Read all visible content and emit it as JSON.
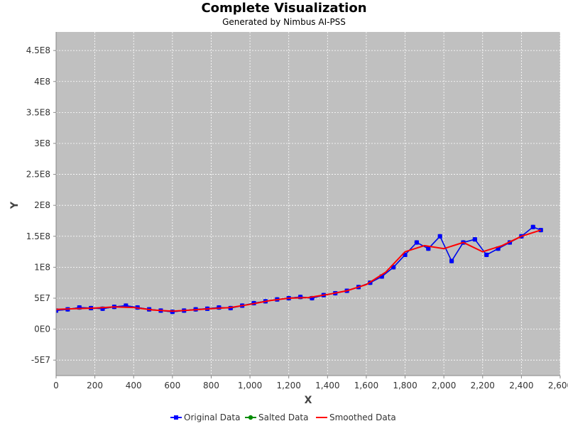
{
  "chart_data": {
    "type": "line",
    "title": "Complete Visualization",
    "subtitle": "Generated by Nimbus AI-PSS",
    "xlabel": "X",
    "ylabel": "Y",
    "xlim": [
      0,
      2600
    ],
    "ylim": [
      -75000000,
      480000000
    ],
    "x_ticks": [
      0,
      200,
      400,
      600,
      800,
      1000,
      1200,
      1400,
      1600,
      1800,
      2000,
      2200,
      2400,
      2600
    ],
    "x_tick_labels": [
      "0",
      "200",
      "400",
      "600",
      "800",
      "1,000",
      "1,200",
      "1,400",
      "1,600",
      "1,800",
      "2,000",
      "2,200",
      "2,400",
      "2,600"
    ],
    "y_ticks": [
      -50000000,
      0,
      50000000,
      100000000,
      150000000,
      200000000,
      250000000,
      300000000,
      350000000,
      400000000,
      450000000
    ],
    "y_tick_labels": [
      "-5E7",
      "0E0",
      "5E7",
      "1E8",
      "1.5E8",
      "2E8",
      "2.5E8",
      "3E8",
      "3.5E8",
      "4E8",
      "4.5E8"
    ],
    "grid": true,
    "background": "#c0c0c0",
    "legend_position": "bottom",
    "series": [
      {
        "name": "Original Data",
        "color": "#0000ff",
        "marker": "square",
        "x": [
          0,
          60,
          120,
          180,
          240,
          300,
          360,
          420,
          480,
          540,
          600,
          660,
          720,
          780,
          840,
          900,
          960,
          1020,
          1080,
          1140,
          1200,
          1260,
          1320,
          1380,
          1440,
          1500,
          1560,
          1620,
          1680,
          1740,
          1800,
          1860,
          1920,
          1980,
          2040,
          2100,
          2160,
          2220,
          2280,
          2340,
          2400,
          2460,
          2500
        ],
        "y": [
          30000000,
          32000000,
          35000000,
          34000000,
          33000000,
          36000000,
          38000000,
          35000000,
          32000000,
          30000000,
          28000000,
          30000000,
          32000000,
          33000000,
          35000000,
          34000000,
          38000000,
          42000000,
          45000000,
          48000000,
          50000000,
          52000000,
          50000000,
          55000000,
          58000000,
          62000000,
          68000000,
          75000000,
          85000000,
          100000000,
          120000000,
          140000000,
          130000000,
          150000000,
          110000000,
          140000000,
          145000000,
          120000000,
          130000000,
          140000000,
          150000000,
          165000000,
          160000000
        ]
      },
      {
        "name": "Salted Data",
        "color": "#008c00",
        "marker": "circle",
        "x": [
          0,
          60,
          120,
          180,
          240,
          300,
          360,
          420,
          480,
          540,
          600,
          660,
          720,
          780,
          840,
          900,
          960,
          1020,
          1080,
          1140,
          1200,
          1260,
          1320,
          1380,
          1440,
          1500,
          1560,
          1620,
          1680,
          1740,
          1800,
          1860,
          1920,
          1980,
          2040,
          2100,
          2160,
          2220,
          2280,
          2340,
          2400,
          2460,
          2500
        ],
        "y": [
          30000000,
          32000000,
          35000000,
          34000000,
          33000000,
          36000000,
          38000000,
          35000000,
          32000000,
          30000000,
          28000000,
          30000000,
          32000000,
          33000000,
          35000000,
          34000000,
          38000000,
          42000000,
          45000000,
          48000000,
          50000000,
          52000000,
          50000000,
          55000000,
          58000000,
          62000000,
          68000000,
          75000000,
          85000000,
          100000000,
          120000000,
          140000000,
          130000000,
          150000000,
          110000000,
          140000000,
          145000000,
          120000000,
          130000000,
          140000000,
          150000000,
          165000000,
          160000000
        ]
      },
      {
        "name": "Smoothed Data",
        "color": "#ff0000",
        "marker": "none",
        "x": [
          0,
          100,
          200,
          300,
          400,
          500,
          600,
          700,
          800,
          900,
          1000,
          1100,
          1200,
          1300,
          1400,
          1500,
          1600,
          1700,
          1800,
          1900,
          2000,
          2100,
          2200,
          2300,
          2400,
          2500
        ],
        "y": [
          32000000,
          33000000,
          34000000,
          36000000,
          35000000,
          31000000,
          29000000,
          31000000,
          33000000,
          35000000,
          40000000,
          46000000,
          50000000,
          51000000,
          56000000,
          62000000,
          72000000,
          92000000,
          125000000,
          135000000,
          130000000,
          140000000,
          125000000,
          135000000,
          150000000,
          160000000
        ]
      }
    ]
  }
}
